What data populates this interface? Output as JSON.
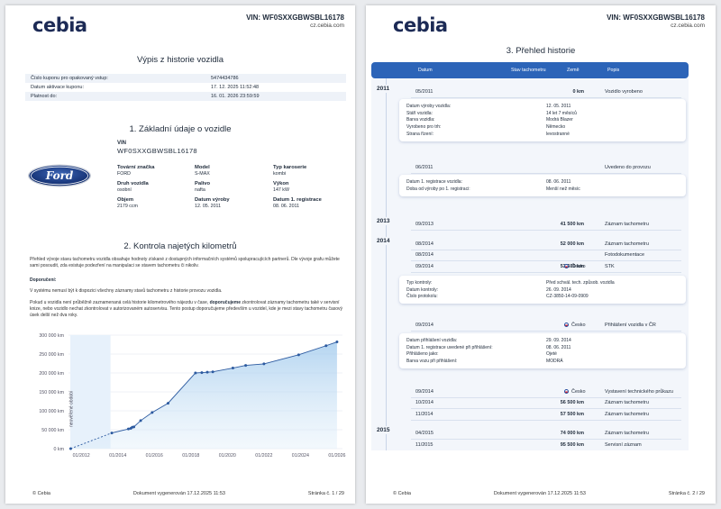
{
  "brand": "cebia",
  "vin_header": "VIN: WF0SXXGBWSBL16178",
  "site": "cz.cebia.com",
  "footer": {
    "copyright": "© Cebia",
    "generated": "Dokument vygenerován 17.12.2025 11:53",
    "page1": "Stránka č. 1 / 29",
    "page2": "Stránka č. 2 / 29"
  },
  "page1": {
    "title": "Výpis z historie vozidla",
    "coupon": [
      {
        "k": "Číslo kuponu pro opakovaný vstup:",
        "v": "5474434786"
      },
      {
        "k": "Datum aktivace kuponu:",
        "v": "17. 12. 2025 11:52:48"
      },
      {
        "k": "Platnost do:",
        "v": "16. 01. 2026 23:59:59"
      }
    ],
    "section1": "1. Základní údaje o vozidle",
    "vin_label": "VIN",
    "vin": "WF0SXXGBWSBL16178",
    "logo_text": "Ford",
    "attrs": [
      {
        "k": "Tovární značka",
        "v": "FORD"
      },
      {
        "k": "Model",
        "v": "S-MAX"
      },
      {
        "k": "Typ karoserie",
        "v": "kombi"
      },
      {
        "k": "Druh vozidla",
        "v": "osobní"
      },
      {
        "k": "Palivo",
        "v": "nafta"
      },
      {
        "k": "Výkon",
        "v": "147 kW"
      },
      {
        "k": "Objem",
        "v": "2179 ccm"
      },
      {
        "k": "Datum výroby",
        "v": "12. 05. 2011"
      },
      {
        "k": "Datum 1. registrace",
        "v": "08. 06. 2011"
      }
    ],
    "section2": "2. Kontrola najetých kilometrů",
    "intro": "Přehled vývoje stavu tachometru vozidla obsahuje hodnoty získané z dostupných informačních systémů spolupracujících partnerů. Dle vývoje grafu můžete sami posoudit, zda existuje podezření na manipulaci se stavem tachometru či nikoliv.",
    "recommend_title": "Doporučení:",
    "recommend_1": "V systému nemusí být k dispozici všechny záznamy stavů tachometru z historie provozu vozidla.",
    "recommend_2": "Pokud u vozidla není průběžně zaznamenaná celá historie kilometrového nájezdu v čase, doporučujeme zkontrolovat záznamy tachometru také v servisní knize, nebo vozidlo nechat zkontrolovat v autorizovaném autoservisu. Tento postup doporučujeme především u vozidel, kde je mezi stavy tachometru časový úsek delší než dva roky.",
    "recommend_2_bold": "doporučujeme"
  },
  "chart_data": {
    "type": "line",
    "title": "",
    "xlabel": "",
    "ylabel": "",
    "x_ticks": [
      "01/2012",
      "01/2014",
      "01/2016",
      "01/2018",
      "01/2020",
      "01/2022",
      "01/2024",
      "01/2026"
    ],
    "y_ticks": [
      "0 km",
      "50 000 km",
      "100 000 km",
      "150 000 km",
      "200 000 km",
      "250 000 km",
      "300 000 km"
    ],
    "ylim": [
      0,
      300000
    ],
    "xlim": [
      2011.3,
      2026.3
    ],
    "shaded_region_label": "neověřené období",
    "shaded_region": [
      2011.4,
      2013.6
    ],
    "series": [
      {
        "points": [
          {
            "x": 2011.42,
            "y": 0
          },
          {
            "x": 2013.67,
            "y": 41500
          },
          {
            "x": 2014.58,
            "y": 52000
          },
          {
            "x": 2014.71,
            "y": 53500
          },
          {
            "x": 2014.79,
            "y": 56500
          },
          {
            "x": 2014.88,
            "y": 57500
          },
          {
            "x": 2015.25,
            "y": 74000
          },
          {
            "x": 2015.88,
            "y": 95500
          },
          {
            "x": 2016.75,
            "y": 120000
          },
          {
            "x": 2018.25,
            "y": 200000
          },
          {
            "x": 2018.6,
            "y": 201000
          },
          {
            "x": 2018.9,
            "y": 202000
          },
          {
            "x": 2019.2,
            "y": 203000
          },
          {
            "x": 2020.3,
            "y": 213000
          },
          {
            "x": 2021.0,
            "y": 220000
          },
          {
            "x": 2022.0,
            "y": 224000
          },
          {
            "x": 2023.9,
            "y": 248000
          },
          {
            "x": 2025.4,
            "y": 272000
          },
          {
            "x": 2026.0,
            "y": 282000
          }
        ]
      }
    ]
  },
  "page2": {
    "title": "3. Přehled historie",
    "headers": {
      "date": "Datum",
      "km": "Stav tachometru",
      "country": "Země",
      "desc": "Popis"
    },
    "years": [
      "2011",
      "2013",
      "2014",
      "2015"
    ],
    "events": [
      {
        "date": "05/2011",
        "km": "0 km",
        "country": "",
        "desc": "Vozidlo vyrobeno"
      },
      {
        "date": "06/2011",
        "km": "",
        "country": "",
        "desc": "Uvedeno do provozu"
      },
      {
        "date": "09/2013",
        "km": "41 500 km",
        "country": "",
        "desc": "Záznam tachometru"
      },
      {
        "date": "08/2014",
        "km": "52 000 km",
        "country": "",
        "desc": "Záznam tachometru"
      },
      {
        "date": "08/2014",
        "km": "",
        "country": "",
        "desc": "Fotodokumentace"
      },
      {
        "date": "09/2014",
        "km": "53 500 km",
        "country": "Česko",
        "desc": "STK"
      },
      {
        "date": "09/2014",
        "km": "",
        "country": "Česko",
        "desc": "Přihlášení vozidla v ČR"
      },
      {
        "date": "09/2014",
        "km": "",
        "country": "Česko",
        "desc": "Vystavení technického průkazu"
      },
      {
        "date": "10/2014",
        "km": "56 500 km",
        "country": "",
        "desc": "Záznam tachometru"
      },
      {
        "date": "11/2014",
        "km": "57 500 km",
        "country": "",
        "desc": "Záznam tachometru"
      },
      {
        "date": "04/2015",
        "km": "74 000 km",
        "country": "",
        "desc": "Záznam tachometru"
      },
      {
        "date": "11/2015",
        "km": "95 500 km",
        "country": "",
        "desc": "Servisní záznam"
      }
    ],
    "card1": [
      {
        "k": "Datum výroby vozidla:",
        "v": "12. 05. 2011"
      },
      {
        "k": "Stáří vozidla:",
        "v": "14 let 7 měsíců"
      },
      {
        "k": "Barva vozidla:",
        "v": "Modrá Blazer"
      },
      {
        "k": "Vyrobeno pro trh:",
        "v": "Německo"
      },
      {
        "k": "Strana řízení:",
        "v": "levostranné"
      }
    ],
    "card2": [
      {
        "k": "Datum 1. registrace vozidla:",
        "v": "08. 06. 2011"
      },
      {
        "k": "Doba od výroby po 1. registraci:",
        "v": "Menší než měsíc"
      }
    ],
    "card3": [
      {
        "k": "Typ kontroly:",
        "v": "Před schvál. tech. způsob. vozidla"
      },
      {
        "k": "Datum kontroly:",
        "v": "26. 09. 2014"
      },
      {
        "k": "Číslo protokolu:",
        "v": "CZ-3850-14-09-0909"
      }
    ],
    "card4": [
      {
        "k": "Datum přihlášení vozidla:",
        "v": "29. 09. 2014"
      },
      {
        "k": "Datum 1. registrace uvedené při přihlášení:",
        "v": "08. 06. 2011"
      },
      {
        "k": "Přihlášeno jako:",
        "v": "Ojeté"
      },
      {
        "k": "Barva vozu při přihlášení:",
        "v": "MODRÁ"
      }
    ]
  }
}
